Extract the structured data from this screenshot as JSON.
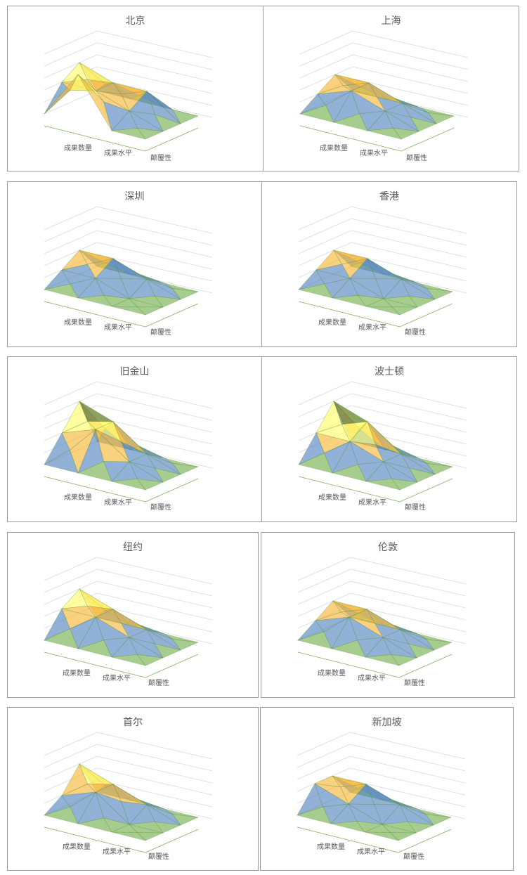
{
  "chart_data": [
    {
      "type": "surface",
      "title": "北京",
      "categories": [
        "成果数量",
        "成果水平",
        "颠覆性"
      ],
      "band_colors": [
        "#6fae48",
        "#4f81bd",
        "#f7b531",
        "#ffff66",
        "#4b6a3a"
      ],
      "values": [
        [
          1,
          3,
          4,
          1
        ],
        [
          5,
          3,
          3,
          1
        ],
        [
          1,
          2,
          3,
          1
        ],
        [
          1,
          1,
          1,
          1
        ]
      ]
    },
    {
      "type": "surface",
      "title": "上海",
      "categories": [
        "成果数量",
        "成果水平",
        "颠覆性"
      ],
      "band_colors": [
        "#6fae48",
        "#4f81bd",
        "#f7b531",
        "#ffff66",
        "#4b6a3a"
      ],
      "values": [
        [
          1,
          2,
          3,
          1
        ],
        [
          1,
          3,
          3,
          1
        ],
        [
          1,
          2,
          2,
          1
        ],
        [
          1,
          1,
          1,
          1
        ]
      ]
    },
    {
      "type": "surface",
      "title": "深圳",
      "categories": [
        "成果数量",
        "成果水平",
        "颠覆性"
      ],
      "band_colors": [
        "#6fae48",
        "#4f81bd",
        "#f7b531",
        "#ffff66",
        "#4b6a3a"
      ],
      "values": [
        [
          1,
          2,
          3,
          1
        ],
        [
          1,
          2,
          3,
          1
        ],
        [
          1,
          1,
          2,
          1
        ],
        [
          1,
          1,
          1,
          1
        ]
      ]
    },
    {
      "type": "surface",
      "title": "香港",
      "categories": [
        "成果数量",
        "成果水平",
        "颠覆性"
      ],
      "band_colors": [
        "#6fae48",
        "#4f81bd",
        "#f7b531",
        "#ffff66",
        "#4b6a3a"
      ],
      "values": [
        [
          1,
          2,
          3,
          1
        ],
        [
          1,
          2,
          3,
          1
        ],
        [
          1,
          1,
          2,
          1
        ],
        [
          1,
          1,
          1,
          1
        ]
      ]
    },
    {
      "type": "surface",
      "title": "旧金山",
      "categories": [
        "成果数量",
        "成果水平",
        "颠覆性"
      ],
      "band_colors": [
        "#6fae48",
        "#4f81bd",
        "#f7b531",
        "#ffff66",
        "#4b6a3a"
      ],
      "values": [
        [
          1,
          3,
          5,
          1
        ],
        [
          1,
          4,
          4,
          1
        ],
        [
          1,
          2,
          2,
          1
        ],
        [
          1,
          1,
          1,
          1
        ]
      ]
    },
    {
      "type": "surface",
      "title": "波士顿",
      "categories": [
        "成果数量",
        "成果水平",
        "颠覆性"
      ],
      "band_colors": [
        "#6fae48",
        "#4f81bd",
        "#f7b531",
        "#ffff66",
        "#4b6a3a"
      ],
      "values": [
        [
          1,
          3,
          5,
          1
        ],
        [
          1,
          3,
          4,
          1
        ],
        [
          1,
          2,
          2,
          1
        ],
        [
          1,
          1,
          1,
          1
        ]
      ]
    },
    {
      "type": "surface",
      "title": "纽约",
      "categories": [
        "成果数量",
        "成果水平",
        "颠覆性"
      ],
      "band_colors": [
        "#6fae48",
        "#4f81bd",
        "#f7b531",
        "#ffff66",
        "#4b6a3a"
      ],
      "values": [
        [
          1,
          3,
          4,
          1
        ],
        [
          1,
          3,
          3,
          1
        ],
        [
          1,
          2,
          2,
          1
        ],
        [
          1,
          1,
          1,
          1
        ]
      ]
    },
    {
      "type": "surface",
      "title": "伦敦",
      "categories": [
        "成果数量",
        "成果水平",
        "颠覆性"
      ],
      "band_colors": [
        "#6fae48",
        "#4f81bd",
        "#f7b531",
        "#ffff66",
        "#4b6a3a"
      ],
      "values": [
        [
          1,
          2,
          3,
          1
        ],
        [
          1,
          3,
          3,
          1
        ],
        [
          1,
          2,
          2,
          1
        ],
        [
          1,
          1,
          1,
          1
        ]
      ]
    },
    {
      "type": "surface",
      "title": "首尔",
      "categories": [
        "成果数量",
        "成果水平",
        "颠覆性"
      ],
      "band_colors": [
        "#6fae48",
        "#4f81bd",
        "#f7b531",
        "#ffff66",
        "#4b6a3a"
      ],
      "values": [
        [
          1,
          2,
          4,
          1
        ],
        [
          1,
          3,
          3,
          1
        ],
        [
          1,
          1,
          2,
          1
        ],
        [
          1,
          1,
          1,
          1
        ]
      ]
    },
    {
      "type": "surface",
      "title": "新加坡",
      "categories": [
        "成果数量",
        "成果水平",
        "颠覆性"
      ],
      "band_colors": [
        "#6fae48",
        "#4f81bd",
        "#f7b531",
        "#ffff66",
        "#4b6a3a"
      ],
      "values": [
        [
          1,
          3,
          3,
          1
        ],
        [
          1,
          2,
          3,
          1
        ],
        [
          1,
          1,
          2,
          1
        ],
        [
          1,
          1,
          1,
          1
        ]
      ]
    }
  ]
}
